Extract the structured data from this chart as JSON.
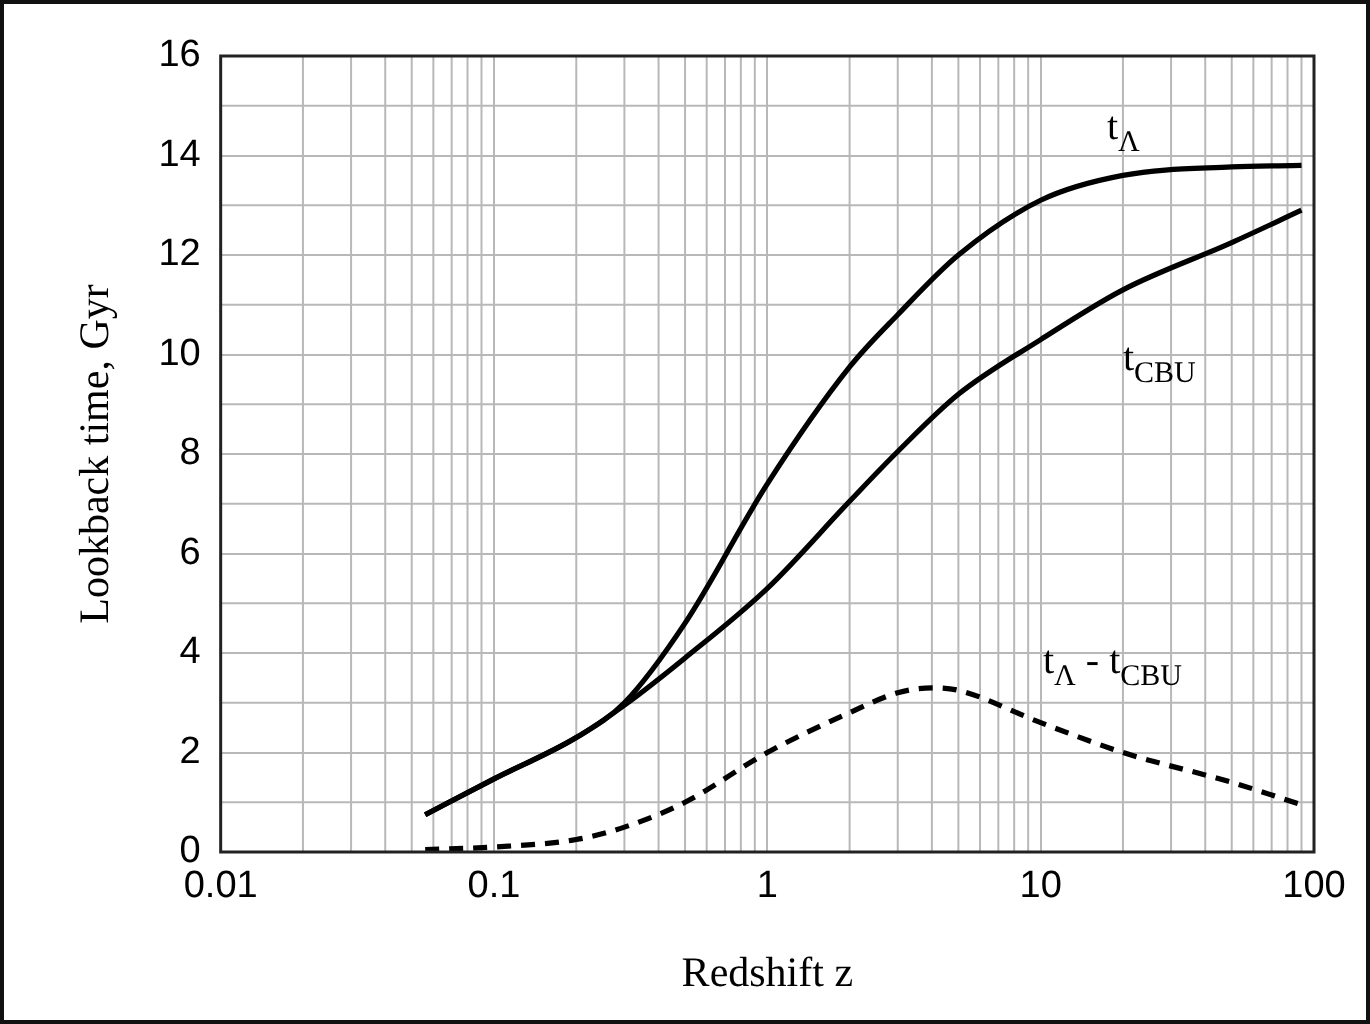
{
  "chart_data": {
    "type": "line",
    "xlabel": "Redshift z",
    "ylabel": "Lookback time, Gyr",
    "log": "x",
    "xlim": [
      0.01,
      100
    ],
    "xticks": [
      0.01,
      0.1,
      1,
      10,
      100
    ],
    "ylim": [
      0,
      16
    ],
    "yticks": [
      0,
      2,
      4,
      6,
      8,
      10,
      12,
      14,
      16
    ],
    "grid": true,
    "legend": false,
    "marker": "none",
    "series": [
      {
        "name": "t$_{Λ}$",
        "color": "#000000",
        "line_style": "solid",
        "x": [
          0.056,
          0.1,
          0.2,
          0.3,
          0.5,
          1,
          2,
          3,
          5,
          10,
          20,
          50,
          90
        ],
        "values": [
          0.75,
          1.47,
          2.3,
          3.0,
          4.6,
          7.4,
          9.75,
          10.8,
          12.0,
          13.1,
          13.6,
          13.77,
          13.8
        ]
      },
      {
        "name": "t$_{CBU}$",
        "color": "#000000",
        "line_style": "solid",
        "x": [
          0.056,
          0.1,
          0.2,
          0.3,
          0.5,
          1,
          2,
          3,
          5,
          10,
          20,
          50,
          90
        ],
        "values": [
          0.75,
          1.47,
          2.3,
          2.95,
          3.9,
          5.3,
          7.05,
          8.05,
          9.2,
          10.3,
          11.3,
          12.25,
          12.9
        ]
      },
      {
        "name": "t$_{Λ}$ - t$_{CBU}$",
        "color": "#000000",
        "line_style": "dashed",
        "x": [
          0.056,
          0.1,
          0.2,
          0.3,
          0.5,
          1,
          2,
          3,
          4,
          5,
          10,
          20,
          50,
          90
        ],
        "values": [
          0.05,
          0.1,
          0.25,
          0.5,
          1.0,
          2.0,
          2.8,
          3.2,
          3.3,
          3.25,
          2.6,
          2.0,
          1.4,
          0.95
        ]
      }
    ]
  }
}
